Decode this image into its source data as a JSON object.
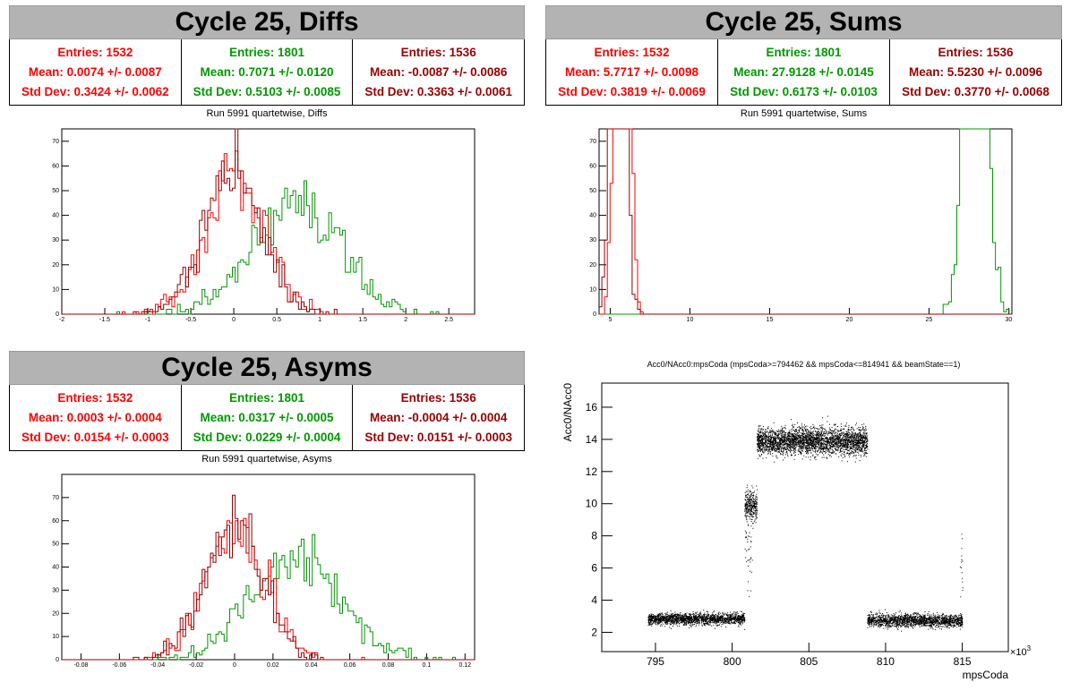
{
  "colors": {
    "red": "#ff0000",
    "green": "#009900",
    "darkred": "#990000",
    "title_bg": "#b3b3b3"
  },
  "panels": [
    {
      "id": "diffs",
      "title": "Cycle 25, Diffs",
      "stats": [
        {
          "color": "red",
          "entries": "Entries: 1532",
          "mean": "Mean: 0.0074 +/- 0.0087",
          "std": "Std Dev: 0.3424 +/- 0.0062"
        },
        {
          "color": "green",
          "entries": "Entries: 1801",
          "mean": "Mean: 0.7071 +/- 0.0120",
          "std": "Std Dev: 0.5103 +/- 0.0085"
        },
        {
          "color": "darkred",
          "entries": "Entries: 1536",
          "mean": "Mean: -0.0087 +/- 0.0086",
          "std": "Std Dev: 0.3363 +/- 0.0061"
        }
      ],
      "plot_title": "Run 5991 quartetwise, Diffs"
    },
    {
      "id": "sums",
      "title": "Cycle 25, Sums",
      "stats": [
        {
          "color": "red",
          "entries": "Entries: 1532",
          "mean": "Mean: 5.7717 +/- 0.0098",
          "std": "Std Dev: 0.3819 +/- 0.0069"
        },
        {
          "color": "green",
          "entries": "Entries: 1801",
          "mean": "Mean: 27.9128 +/- 0.0145",
          "std": "Std Dev: 0.6173 +/- 0.0103"
        },
        {
          "color": "darkred",
          "entries": "Entries: 1536",
          "mean": "Mean: 5.5230 +/- 0.0096",
          "std": "Std Dev: 0.3770 +/- 0.0068"
        }
      ],
      "plot_title": "Run 5991 quartetwise, Sums"
    },
    {
      "id": "asyms",
      "title": "Cycle 25, Asyms",
      "stats": [
        {
          "color": "red",
          "entries": "Entries: 1532",
          "mean": "Mean: 0.0003 +/- 0.0004",
          "std": "Std Dev: 0.0154 +/- 0.0003"
        },
        {
          "color": "green",
          "entries": "Entries: 1801",
          "mean": "Mean: 0.0317 +/- 0.0005",
          "std": "Std Dev: 0.0229 +/- 0.0004"
        },
        {
          "color": "darkred",
          "entries": "Entries: 1536",
          "mean": "Mean: -0.0004 +/- 0.0004",
          "std": "Std Dev: 0.0151 +/- 0.0003"
        }
      ],
      "plot_title": "Run 5991 quartetwise, Asyms"
    }
  ],
  "chart_data": [
    {
      "type": "histogram",
      "panel": "diffs",
      "xlim": [
        -2,
        2.8
      ],
      "ylim": [
        0,
        75
      ],
      "xticks": [
        -2,
        -1.5,
        -1,
        -0.5,
        0,
        0.5,
        1,
        1.5,
        2,
        2.5
      ],
      "xtick_labels": [
        "-2",
        "-1.5",
        "-1",
        "-0.5",
        "0",
        "0.5",
        "1",
        "1.5",
        "2",
        "2.5"
      ],
      "yticks": [
        0,
        10,
        20,
        30,
        40,
        50,
        60,
        70
      ],
      "series": [
        {
          "color": "green",
          "entries": 1801,
          "mean": 0.7071,
          "std": 0.5103
        },
        {
          "color": "red",
          "entries": 1532,
          "mean": 0.0074,
          "std": 0.3424
        },
        {
          "color": "darkred",
          "entries": 1536,
          "mean": -0.0087,
          "std": 0.3363
        }
      ]
    },
    {
      "type": "histogram",
      "panel": "sums",
      "xlim": [
        4.3,
        30.2
      ],
      "ylim": [
        0,
        75
      ],
      "xticks": [
        5,
        10,
        15,
        20,
        25,
        30
      ],
      "xtick_labels": [
        "5",
        "10",
        "15",
        "20",
        "25",
        "30"
      ],
      "yticks": [
        0,
        10,
        20,
        30,
        40,
        50,
        60,
        70
      ],
      "series": [
        {
          "color": "green",
          "entries": 1801,
          "mean": 27.9128,
          "std": 0.6173
        },
        {
          "color": "red",
          "entries": 1532,
          "mean": 5.7717,
          "std": 0.3819
        },
        {
          "color": "darkred",
          "entries": 1536,
          "mean": 5.523,
          "std": 0.377
        }
      ]
    },
    {
      "type": "histogram",
      "panel": "asyms",
      "xlim": [
        -0.09,
        0.125
      ],
      "ylim": [
        0,
        80
      ],
      "xticks": [
        -0.08,
        -0.06,
        -0.04,
        -0.02,
        0,
        0.02,
        0.04,
        0.06,
        0.08,
        0.1,
        0.12
      ],
      "xtick_labels": [
        "-0.08",
        "-0.06",
        "-0.04",
        "-0.02",
        "0",
        "0.02",
        "0.04",
        "0.06",
        "0.08",
        "0.1",
        "0.12"
      ],
      "yticks": [
        0,
        10,
        20,
        30,
        40,
        50,
        60,
        70
      ],
      "series": [
        {
          "color": "green",
          "entries": 1801,
          "mean": 0.0317,
          "std": 0.0229
        },
        {
          "color": "red",
          "entries": 1532,
          "mean": 0.0003,
          "std": 0.0154
        },
        {
          "color": "darkred",
          "entries": 1536,
          "mean": -0.0004,
          "std": 0.0151
        }
      ]
    },
    {
      "type": "scatter",
      "title": "Acc0/NAcc0:mpsCoda (mpsCoda>=794462 && mpsCoda<=814941 && beamState==1)",
      "xlabel": "mpsCoda",
      "ylabel": "Acc0/NAcc0",
      "x_multiplier": "×10",
      "x_multiplier_exp": "3",
      "xlim": [
        791.5,
        818
      ],
      "ylim": [
        0.8,
        17.5
      ],
      "xticks": [
        795,
        800,
        805,
        810,
        815
      ],
      "yticks": [
        2,
        4,
        6,
        8,
        10,
        12,
        14,
        16
      ],
      "segments": [
        {
          "x": [
            794.5,
            800.8
          ],
          "y_mean": 2.85,
          "y_spread": 0.32,
          "points": 1800
        },
        {
          "x": [
            800.8,
            801.3
          ],
          "y_mean": 7.5,
          "y_spread": 3.2,
          "points": 40
        },
        {
          "x": [
            800.8,
            801.6
          ],
          "y_mean": 9.9,
          "y_spread": 0.85,
          "points": 320
        },
        {
          "x": [
            801.6,
            808.8
          ],
          "y_mean": 13.9,
          "y_spread": 0.75,
          "points": 3200
        },
        {
          "x": [
            808.8,
            815.0
          ],
          "y_mean": 2.75,
          "y_spread": 0.35,
          "points": 1800
        },
        {
          "x": [
            814.8,
            815.0
          ],
          "y_mean": 6.0,
          "y_spread": 1.6,
          "points": 15
        }
      ]
    }
  ]
}
